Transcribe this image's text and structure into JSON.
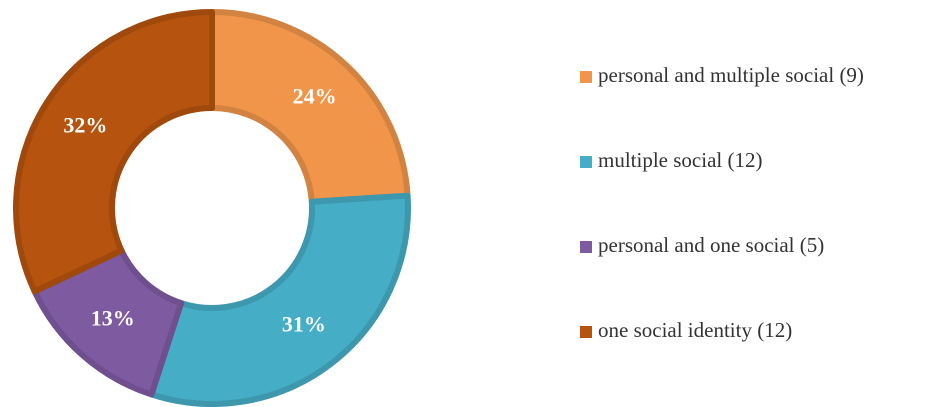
{
  "chart_data": {
    "type": "donut",
    "categories": [
      "personal and multiple social (9)",
      "multiple social (12)",
      "personal and one social (5)",
      "one social identity (12)"
    ],
    "values": [
      24,
      31,
      13,
      32
    ],
    "value_labels": [
      "24%",
      "31%",
      "13%",
      "32%"
    ],
    "colors": [
      "#f0954a",
      "#45adc6",
      "#7e5aa0",
      "#b5530f"
    ],
    "legend": "right"
  }
}
